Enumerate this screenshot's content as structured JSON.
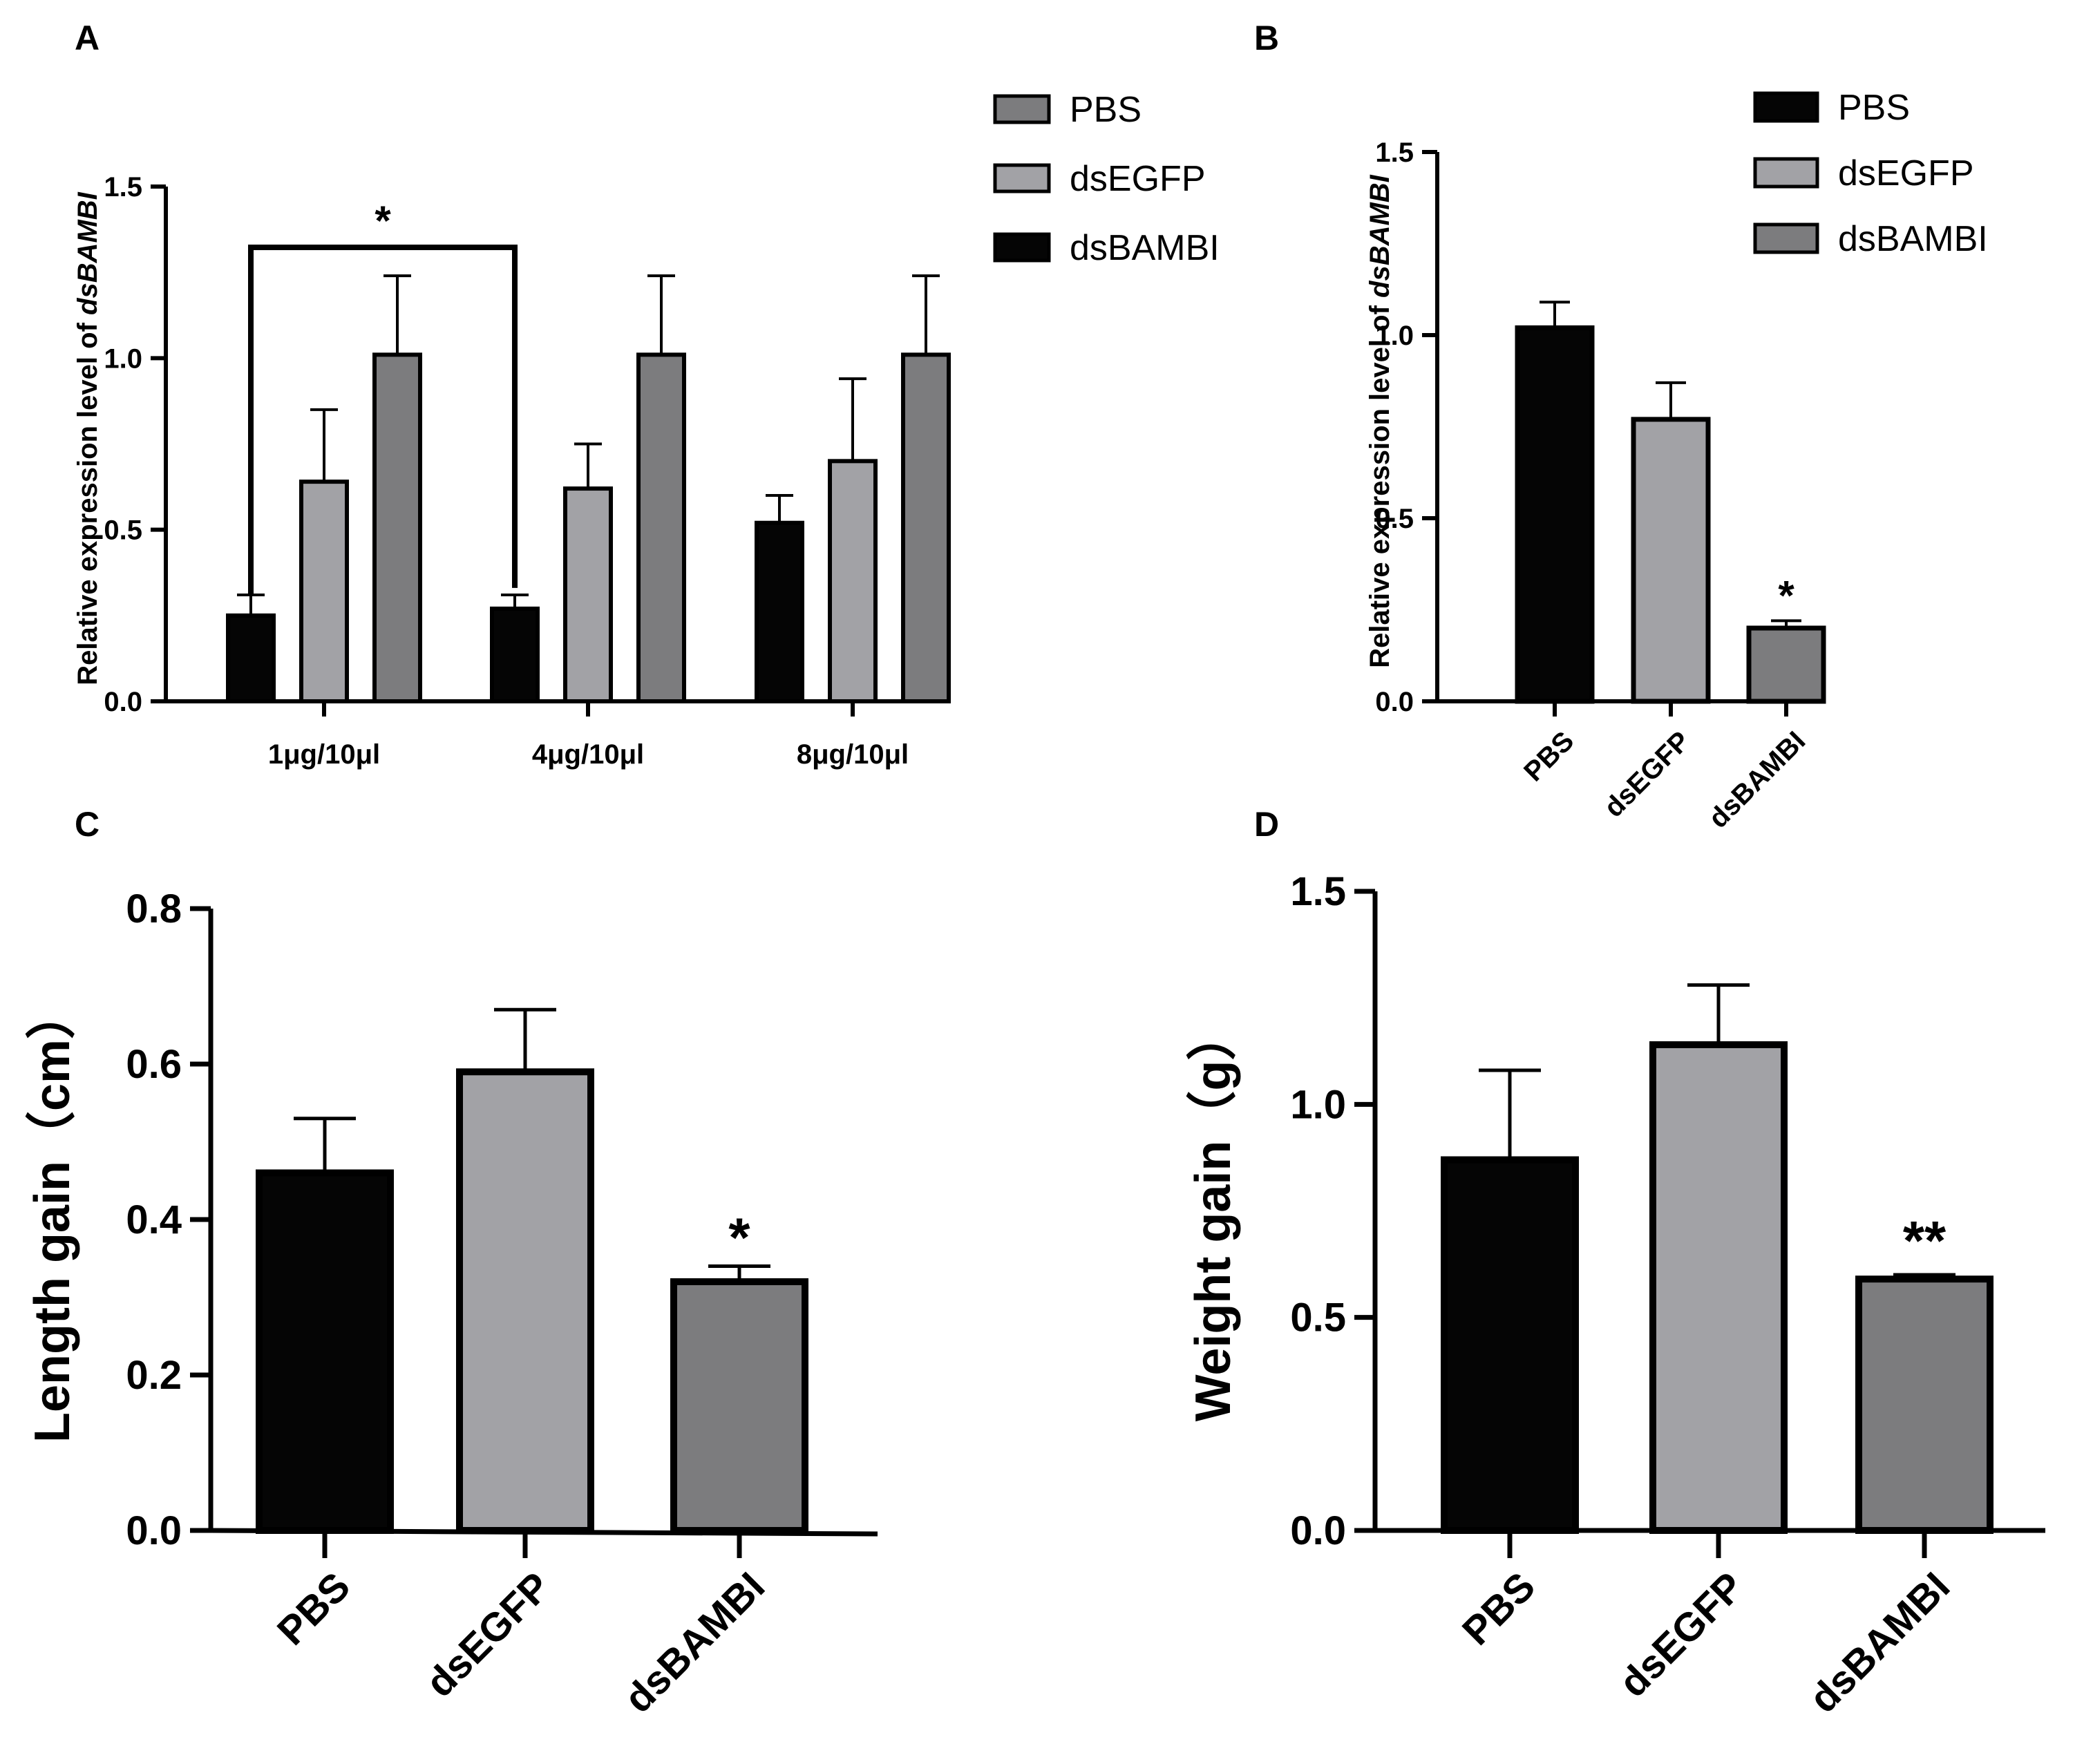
{
  "colors": {
    "PBS": "#050505",
    "dsEGFP": "#a2a2a6",
    "dsBAMBI": "#7c7c7e",
    "axis": "#000000"
  },
  "panels": {
    "A": {
      "label": "A"
    },
    "B": {
      "label": "B"
    },
    "C": {
      "label": "C"
    },
    "D": {
      "label": "D"
    }
  },
  "chart_data": [
    {
      "panel": "A",
      "type": "bar",
      "categories": [
        "1μg/10μl",
        "4μg/10μl",
        "8μg/10μl"
      ],
      "series": [
        {
          "name": "dsBAMBI",
          "values": [
            0.25,
            0.27,
            0.52
          ],
          "errors": [
            0.06,
            0.04,
            0.08
          ]
        },
        {
          "name": "dsEGFP",
          "values": [
            0.64,
            0.62,
            0.7
          ],
          "errors": [
            0.21,
            0.13,
            0.24
          ]
        },
        {
          "name": "PBS",
          "values": [
            1.01,
            1.01,
            1.01
          ],
          "errors": [
            0.23,
            0.23,
            0.23
          ]
        }
      ],
      "legend": [
        "PBS",
        "dsEGFP",
        "dsBAMBI"
      ],
      "legend_colors": [
        "#7c7c7e",
        "#a2a2a6",
        "#050505"
      ],
      "ylabel": "Relative expression level of ",
      "ylabel_italic": "dsBAMBI",
      "xlabel": "",
      "ylim": [
        0,
        1.5
      ],
      "yticks": [
        "0.0",
        "0.5",
        "1.0",
        "1.5"
      ],
      "annotations": [
        {
          "text": "*",
          "between": [
            "1μg/10μl dsBAMBI",
            "4μg/10μl dsBAMBI"
          ]
        }
      ],
      "legend_position": "top-right"
    },
    {
      "panel": "B",
      "type": "bar",
      "categories": [
        "PBS",
        "dsEGFP",
        "dsBAMBI"
      ],
      "values": [
        1.02,
        0.77,
        0.2
      ],
      "errors": [
        0.07,
        0.1,
        0.02
      ],
      "legend": [
        "PBS",
        "dsEGFP",
        "dsBAMBI"
      ],
      "ylabel": "Relative expression level of ",
      "ylabel_italic": "dsBAMBI",
      "xlabel": "",
      "ylim": [
        0,
        1.5
      ],
      "yticks": [
        "0.0",
        "0.5",
        "1.0",
        "1.5"
      ],
      "annotations": [
        {
          "text": "*",
          "category": "dsBAMBI"
        }
      ],
      "legend_position": "top-right"
    },
    {
      "panel": "C",
      "type": "bar",
      "categories": [
        "PBS",
        "dsEGFP",
        "dsBAMBI"
      ],
      "values": [
        0.46,
        0.59,
        0.32
      ],
      "errors": [
        0.07,
        0.08,
        0.02
      ],
      "ylabel": "Length gain（cm）",
      "xlabel": "",
      "ylim": [
        0,
        0.8
      ],
      "yticks": [
        "0.0",
        "0.2",
        "0.4",
        "0.6",
        "0.8"
      ],
      "annotations": [
        {
          "text": "*",
          "category": "dsBAMBI"
        }
      ]
    },
    {
      "panel": "D",
      "type": "bar",
      "categories": [
        "PBS",
        "dsEGFP",
        "dsBAMBI"
      ],
      "values": [
        0.87,
        1.14,
        0.59
      ],
      "errors": [
        0.21,
        0.14,
        0.01
      ],
      "ylabel": "Weight gain（g）",
      "xlabel": "",
      "ylim": [
        0,
        1.5
      ],
      "yticks": [
        "0.0",
        "0.5",
        "1.0",
        "1.5"
      ],
      "annotations": [
        {
          "text": "**",
          "category": "dsBAMBI"
        }
      ]
    }
  ]
}
